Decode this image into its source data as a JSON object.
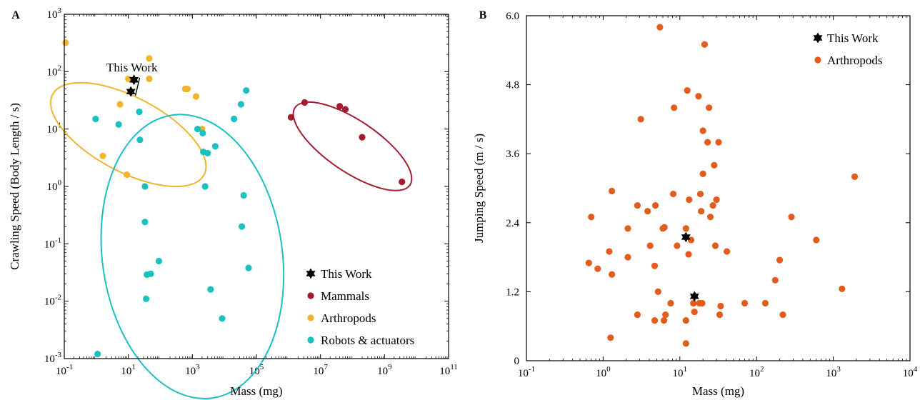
{
  "colors": {
    "this_work": "#000000",
    "mammals": "#a51c30",
    "arthropods_a": "#f0b52a",
    "robots": "#1cc0c0",
    "arthropods_b": "#e25c1d"
  },
  "chart_data": [
    {
      "panel": "A",
      "type": "scatter",
      "xlabel": "Mass (mg)",
      "ylabel": "Crawling Speed (Body Length / s)",
      "xscale": "log",
      "yscale": "log",
      "xlim": [
        0.1,
        100000000000
      ],
      "ylim": [
        0.001,
        1000
      ],
      "xticks": [
        {
          "base": "10",
          "exp": "-1"
        },
        {
          "base": "10",
          "exp": "1"
        },
        {
          "base": "10",
          "exp": "3"
        },
        {
          "base": "10",
          "exp": "5"
        },
        {
          "base": "10",
          "exp": "7"
        },
        {
          "base": "10",
          "exp": "9"
        },
        {
          "base": "10",
          "exp": "11"
        }
      ],
      "yticks": [
        {
          "base": "10",
          "exp": "-3"
        },
        {
          "base": "10",
          "exp": "-2"
        },
        {
          "base": "10",
          "exp": "-1"
        },
        {
          "base": "10",
          "exp": "0"
        },
        {
          "base": "10",
          "exp": "1"
        },
        {
          "base": "10",
          "exp": "2"
        },
        {
          "base": "10",
          "exp": "3"
        }
      ],
      "grid": false,
      "legend_position": "bottom-right",
      "annotation": "This Work",
      "series": [
        {
          "name": "This Work",
          "marker": "star",
          "color": "#000000",
          "points": [
            [
              12,
              45
            ],
            [
              15,
              72
            ]
          ]
        },
        {
          "name": "Mammals",
          "marker": "circle",
          "color": "#a51c30",
          "points": [
            [
              1200000,
              16
            ],
            [
              3200000,
              29
            ],
            [
              40000000,
              25
            ],
            [
              60000000,
              22
            ],
            [
              200000000,
              7.2
            ],
            [
              3500000000,
              1.2
            ]
          ]
        },
        {
          "name": "Arthropods",
          "marker": "circle",
          "color": "#f0b52a",
          "points": [
            [
              0.11,
              320
            ],
            [
              1.6,
              3.4
            ],
            [
              5.5,
              27
            ],
            [
              9,
              1.6
            ],
            [
              10,
              75
            ],
            [
              14,
              72
            ],
            [
              45,
              170
            ],
            [
              45,
              75
            ],
            [
              600,
              50
            ],
            [
              700,
              50
            ],
            [
              1300,
              37
            ],
            [
              2000,
              10
            ]
          ]
        },
        {
          "name": "Robots & actuators",
          "marker": "circle",
          "color": "#1cc0c0",
          "points": [
            [
              1.1,
              0.0012
            ],
            [
              0.95,
              15
            ],
            [
              5,
              12
            ],
            [
              22,
              20
            ],
            [
              23,
              6.5
            ],
            [
              33,
              1
            ],
            [
              33,
              0.24
            ],
            [
              36,
              0.011
            ],
            [
              38,
              0.029
            ],
            [
              50,
              0.03
            ],
            [
              90,
              0.05
            ],
            [
              1450,
              10
            ],
            [
              2100,
              8.5
            ],
            [
              2200,
              4
            ],
            [
              2500,
              1
            ],
            [
              3000,
              3.8
            ],
            [
              3700,
              0.016
            ],
            [
              5200,
              5
            ],
            [
              8500,
              0.005
            ],
            [
              20000,
              15
            ],
            [
              33000,
              27
            ],
            [
              35000,
              0.2
            ],
            [
              40000,
              0.7
            ],
            [
              48000,
              47
            ],
            [
              57000,
              0.038
            ]
          ]
        }
      ]
    },
    {
      "panel": "B",
      "type": "scatter",
      "xlabel": "Mass (mg)",
      "ylabel": "Jumping Speed (m / s)",
      "xscale": "log",
      "yscale": "linear",
      "xlim": [
        0.1,
        10000
      ],
      "ylim": [
        0,
        6
      ],
      "xticks": [
        {
          "base": "10",
          "exp": "-1"
        },
        {
          "base": "10",
          "exp": "0"
        },
        {
          "base": "10",
          "exp": "1"
        },
        {
          "base": "10",
          "exp": "2"
        },
        {
          "base": "10",
          "exp": "3"
        },
        {
          "base": "10",
          "exp": "4"
        }
      ],
      "yticks": [
        "0",
        "1.2",
        "2.4",
        "3.6",
        "4.8",
        "6.0"
      ],
      "grid": false,
      "legend_position": "top-right",
      "series": [
        {
          "name": "This Work",
          "marker": "star",
          "color": "#000000",
          "points": [
            [
              12,
              2.15
            ],
            [
              15.5,
              1.12
            ]
          ]
        },
        {
          "name": "Arthropods",
          "marker": "circle",
          "color": "#e25c1d",
          "points": [
            [
              0.65,
              1.7
            ],
            [
              0.7,
              2.5
            ],
            [
              0.85,
              1.6
            ],
            [
              1.2,
              1.9
            ],
            [
              1.25,
              0.4
            ],
            [
              1.3,
              1.5
            ],
            [
              1.3,
              2.95
            ],
            [
              2.1,
              2.3
            ],
            [
              2.1,
              1.8
            ],
            [
              2.8,
              2.7
            ],
            [
              2.8,
              0.8
            ],
            [
              3.1,
              4.2
            ],
            [
              3.8,
              2.6
            ],
            [
              4.1,
              2
            ],
            [
              4.7,
              0.7
            ],
            [
              4.7,
              1.65
            ],
            [
              4.8,
              2.7
            ],
            [
              5.2,
              1.2
            ],
            [
              5.5,
              5.8
            ],
            [
              6,
              2.3
            ],
            [
              6.2,
              0.7
            ],
            [
              6.3,
              2.32
            ],
            [
              6.5,
              0.8
            ],
            [
              7.6,
              1
            ],
            [
              8.2,
              2.9
            ],
            [
              8.4,
              4.4
            ],
            [
              9.2,
              2
            ],
            [
              12,
              0.3
            ],
            [
              12,
              2.3
            ],
            [
              12,
              0.7
            ],
            [
              12.5,
              4.7
            ],
            [
              13,
              1.85
            ],
            [
              13.2,
              2.8
            ],
            [
              14,
              2.1
            ],
            [
              15,
              1
            ],
            [
              15.5,
              0.85
            ],
            [
              17.5,
              4.6
            ],
            [
              18,
              1
            ],
            [
              18.5,
              2.9
            ],
            [
              19,
              2.6
            ],
            [
              19.5,
              1
            ],
            [
              20,
              3.25
            ],
            [
              20,
              4
            ],
            [
              21,
              5.5
            ],
            [
              23,
              3.8
            ],
            [
              24,
              4.4
            ],
            [
              25,
              2.5
            ],
            [
              27,
              2.7
            ],
            [
              28,
              3.4
            ],
            [
              29,
              2
            ],
            [
              30,
              2.8
            ],
            [
              32,
              3.8
            ],
            [
              33,
              0.8
            ],
            [
              34,
              0.95
            ],
            [
              41,
              1.9
            ],
            [
              70,
              1
            ],
            [
              130,
              1
            ],
            [
              175,
              1.4
            ],
            [
              200,
              1.75
            ],
            [
              220,
              0.8
            ],
            [
              285,
              2.5
            ],
            [
              600,
              2.1
            ],
            [
              1300,
              1.25
            ],
            [
              1900,
              3.2
            ]
          ]
        }
      ]
    }
  ]
}
